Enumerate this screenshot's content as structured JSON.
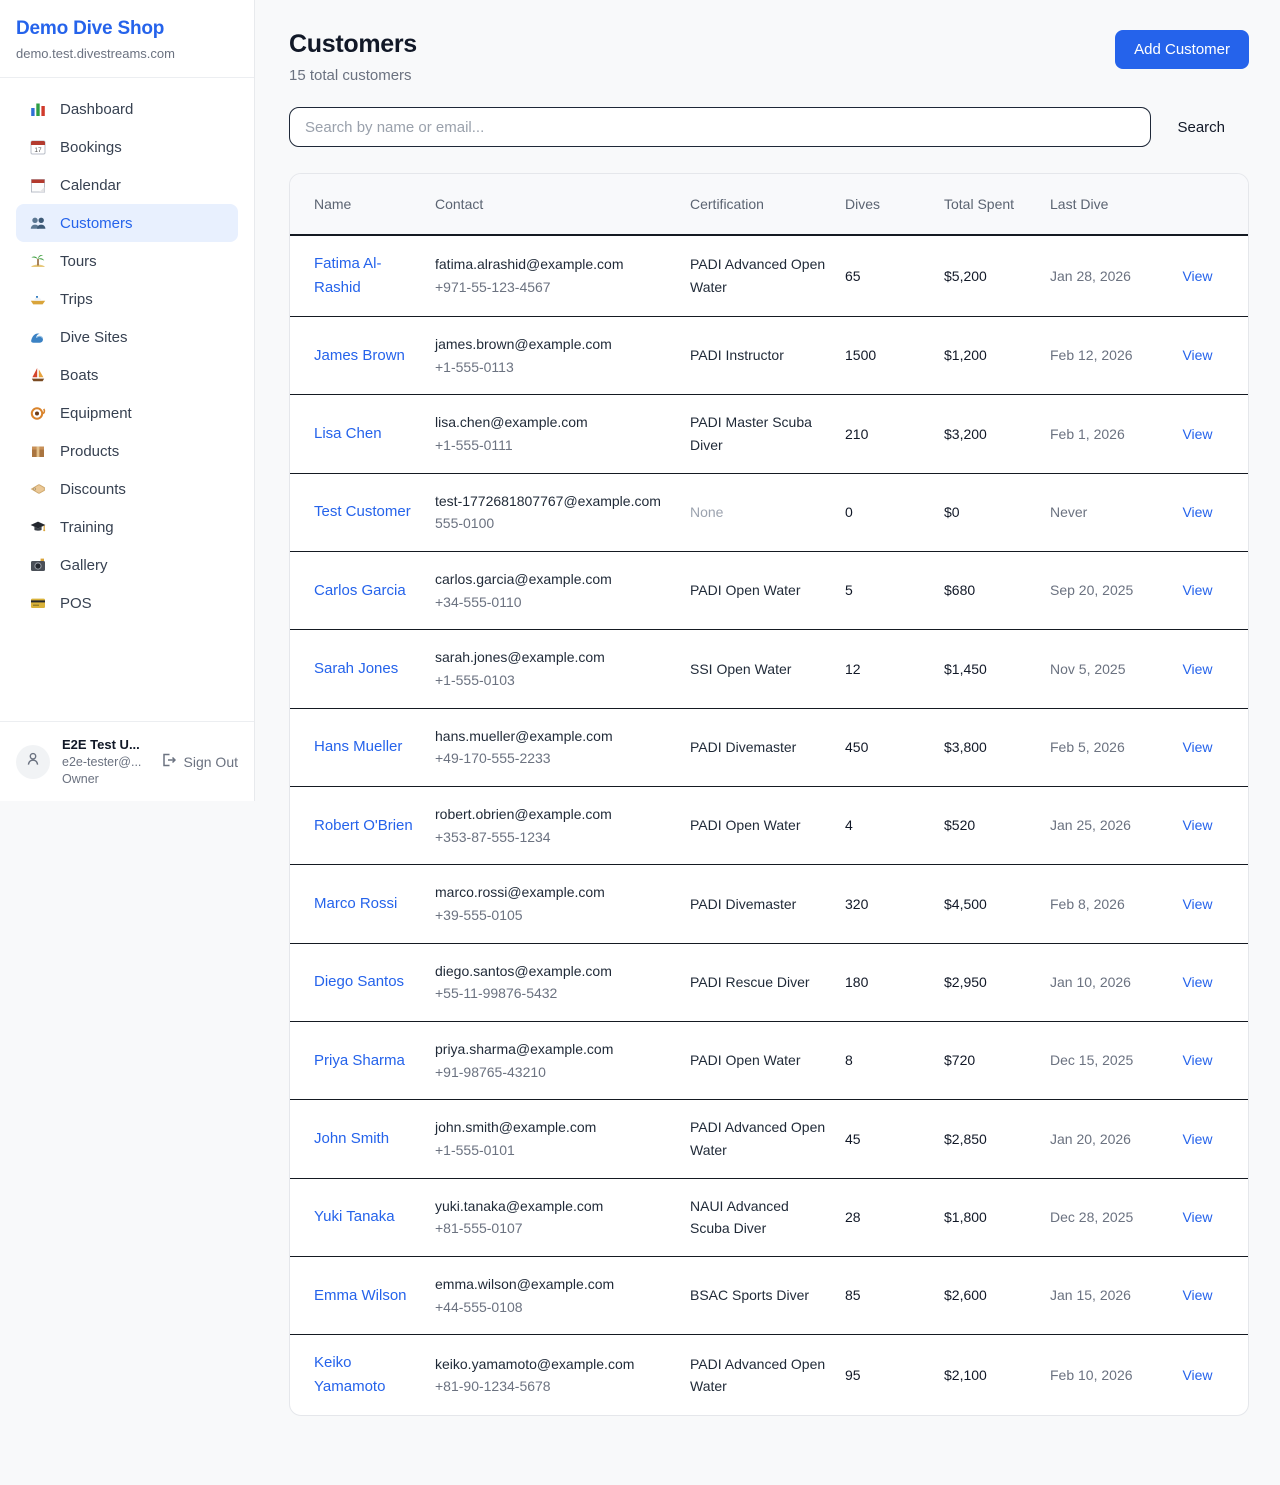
{
  "colors": {
    "accent": "#2563eb",
    "active_nav_bg": "#e8f0fe",
    "page_bg": "#f8f9fa",
    "row_border": "#151a22"
  },
  "sidebar": {
    "shop_name": "Demo Dive Shop",
    "shop_domain": "demo.test.divestreams.com",
    "items": [
      {
        "label": "Dashboard",
        "icon": "bar-chart-icon",
        "active": false
      },
      {
        "label": "Bookings",
        "icon": "bookings-calendar-icon",
        "active": false
      },
      {
        "label": "Calendar",
        "icon": "calendar-icon",
        "active": false
      },
      {
        "label": "Customers",
        "icon": "people-icon",
        "active": true
      },
      {
        "label": "Tours",
        "icon": "island-icon",
        "active": false
      },
      {
        "label": "Trips",
        "icon": "motorboat-icon",
        "active": false
      },
      {
        "label": "Dive Sites",
        "icon": "wave-icon",
        "active": false
      },
      {
        "label": "Boats",
        "icon": "sailboat-icon",
        "active": false
      },
      {
        "label": "Equipment",
        "icon": "dive-mask-icon",
        "active": false
      },
      {
        "label": "Products",
        "icon": "package-icon",
        "active": false
      },
      {
        "label": "Discounts",
        "icon": "tag-icon",
        "active": false
      },
      {
        "label": "Training",
        "icon": "graduation-cap-icon",
        "active": false
      },
      {
        "label": "Gallery",
        "icon": "camera-icon",
        "active": false
      },
      {
        "label": "POS",
        "icon": "credit-card-icon",
        "active": false
      }
    ],
    "user": {
      "name": "E2E Test U...",
      "email": "e2e-tester@...",
      "role": "Owner",
      "sign_out_label": "Sign Out"
    }
  },
  "header": {
    "title": "Customers",
    "subtitle": "15 total customers",
    "add_button_label": "Add Customer"
  },
  "search": {
    "placeholder": "Search by name or email...",
    "button_label": "Search"
  },
  "table": {
    "columns": [
      "Name",
      "Contact",
      "Certification",
      "Dives",
      "Total Spent",
      "Last Dive"
    ],
    "view_label": "View",
    "rows": [
      {
        "name": "Fatima Al-Rashid",
        "email": "fatima.alrashid@example.com",
        "phone": "+971-55-123-4567",
        "certification": "PADI Advanced Open Water",
        "cert_muted": false,
        "dives": 65,
        "total_spent": "$5,200",
        "last_dive": "Jan 28, 2026"
      },
      {
        "name": "James Brown",
        "email": "james.brown@example.com",
        "phone": "+1-555-0113",
        "certification": "PADI Instructor",
        "cert_muted": false,
        "dives": 1500,
        "total_spent": "$1,200",
        "last_dive": "Feb 12, 2026"
      },
      {
        "name": "Lisa Chen",
        "email": "lisa.chen@example.com",
        "phone": "+1-555-0111",
        "certification": "PADI Master Scuba Diver",
        "cert_muted": false,
        "dives": 210,
        "total_spent": "$3,200",
        "last_dive": "Feb 1, 2026"
      },
      {
        "name": "Test Customer",
        "email": "test-1772681807767@example.com",
        "phone": "555-0100",
        "certification": "None",
        "cert_muted": true,
        "dives": 0,
        "total_spent": "$0",
        "last_dive": "Never"
      },
      {
        "name": "Carlos Garcia",
        "email": "carlos.garcia@example.com",
        "phone": "+34-555-0110",
        "certification": "PADI Open Water",
        "cert_muted": false,
        "dives": 5,
        "total_spent": "$680",
        "last_dive": "Sep 20, 2025"
      },
      {
        "name": "Sarah Jones",
        "email": "sarah.jones@example.com",
        "phone": "+1-555-0103",
        "certification": "SSI Open Water",
        "cert_muted": false,
        "dives": 12,
        "total_spent": "$1,450",
        "last_dive": "Nov 5, 2025"
      },
      {
        "name": "Hans Mueller",
        "email": "hans.mueller@example.com",
        "phone": "+49-170-555-2233",
        "certification": "PADI Divemaster",
        "cert_muted": false,
        "dives": 450,
        "total_spent": "$3,800",
        "last_dive": "Feb 5, 2026"
      },
      {
        "name": "Robert O'Brien",
        "email": "robert.obrien@example.com",
        "phone": "+353-87-555-1234",
        "certification": "PADI Open Water",
        "cert_muted": false,
        "dives": 4,
        "total_spent": "$520",
        "last_dive": "Jan 25, 2026"
      },
      {
        "name": "Marco Rossi",
        "email": "marco.rossi@example.com",
        "phone": "+39-555-0105",
        "certification": "PADI Divemaster",
        "cert_muted": false,
        "dives": 320,
        "total_spent": "$4,500",
        "last_dive": "Feb 8, 2026"
      },
      {
        "name": "Diego Santos",
        "email": "diego.santos@example.com",
        "phone": "+55-11-99876-5432",
        "certification": "PADI Rescue Diver",
        "cert_muted": false,
        "dives": 180,
        "total_spent": "$2,950",
        "last_dive": "Jan 10, 2026"
      },
      {
        "name": "Priya Sharma",
        "email": "priya.sharma@example.com",
        "phone": "+91-98765-43210",
        "certification": "PADI Open Water",
        "cert_muted": false,
        "dives": 8,
        "total_spent": "$720",
        "last_dive": "Dec 15, 2025"
      },
      {
        "name": "John Smith",
        "email": "john.smith@example.com",
        "phone": "+1-555-0101",
        "certification": "PADI Advanced Open Water",
        "cert_muted": false,
        "dives": 45,
        "total_spent": "$2,850",
        "last_dive": "Jan 20, 2026"
      },
      {
        "name": "Yuki Tanaka",
        "email": "yuki.tanaka@example.com",
        "phone": "+81-555-0107",
        "certification": "NAUI Advanced Scuba Diver",
        "cert_muted": false,
        "dives": 28,
        "total_spent": "$1,800",
        "last_dive": "Dec 28, 2025"
      },
      {
        "name": "Emma Wilson",
        "email": "emma.wilson@example.com",
        "phone": "+44-555-0108",
        "certification": "BSAC Sports Diver",
        "cert_muted": false,
        "dives": 85,
        "total_spent": "$2,600",
        "last_dive": "Jan 15, 2026"
      },
      {
        "name": "Keiko Yamamoto",
        "email": "keiko.yamamoto@example.com",
        "phone": "+81-90-1234-5678",
        "certification": "PADI Advanced Open Water",
        "cert_muted": false,
        "dives": 95,
        "total_spent": "$2,100",
        "last_dive": "Feb 10, 2026"
      }
    ]
  }
}
